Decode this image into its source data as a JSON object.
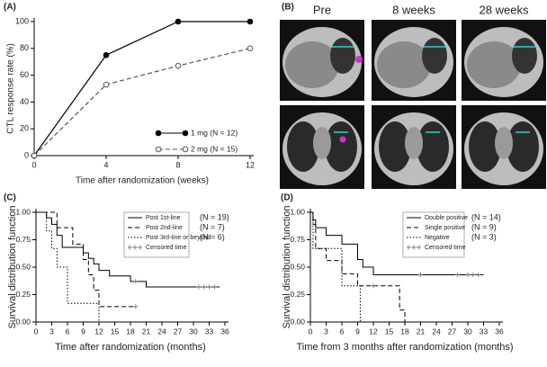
{
  "chart_data": [
    {
      "type": "line",
      "title": "(A)",
      "xlabel": "Time after randomization (weeks)",
      "ylabel": "CTL response rate (%)",
      "x": [
        0,
        4,
        8,
        12
      ],
      "xlim": [
        0,
        12
      ],
      "xticks": [
        0,
        4,
        8,
        12
      ],
      "ylim": [
        0,
        100
      ],
      "yticks": [
        0,
        20,
        40,
        60,
        80,
        100
      ],
      "series": [
        {
          "name": "1 mg (N = 12)",
          "color": "#000000",
          "marker": "filled",
          "dash": "solid",
          "values": [
            0,
            75,
            100,
            100
          ]
        },
        {
          "name": "2 mg (N = 15)",
          "color": "#555555",
          "marker": "open",
          "dash": "dashed",
          "values": [
            0,
            53,
            67,
            80
          ]
        }
      ]
    },
    {
      "type": "image",
      "title": "(B)",
      "columns": [
        "Pre",
        "8 weeks",
        "28 weeks"
      ]
    },
    {
      "type": "step",
      "title": "(C)",
      "xlabel": "Time after randomization (months)",
      "ylabel": "Survival distribution function",
      "xlim": [
        0,
        36
      ],
      "xticks": [
        0,
        3,
        6,
        9,
        12,
        15,
        18,
        21,
        24,
        27,
        30,
        33,
        36
      ],
      "ylim": [
        0,
        1
      ],
      "yticks": [
        {
          "value": 0,
          "label": "0.00"
        },
        {
          "value": 0.25,
          "label": "0.25"
        },
        {
          "value": 0.5,
          "label": "0.50"
        },
        {
          "value": 0.75,
          "label": "0.75"
        },
        {
          "value": 1,
          "label": "1.00"
        }
      ],
      "censor_label": "Censored time",
      "series": [
        {
          "name": "Post 1st-line",
          "n": "(N = 19)",
          "dash": "solid",
          "x": [
            0,
            2,
            3,
            4,
            5,
            9,
            10,
            11,
            12,
            14,
            18,
            21,
            35
          ],
          "values": [
            1,
            0.95,
            0.89,
            0.79,
            0.68,
            0.63,
            0.58,
            0.53,
            0.47,
            0.42,
            0.37,
            0.32,
            0.32
          ],
          "censored": [
            19,
            31,
            32,
            33,
            34
          ]
        },
        {
          "name": "Post 2nd-line",
          "n": "(N = 7)",
          "dash": "dashed",
          "x": [
            0,
            4,
            7,
            9,
            10,
            11,
            12,
            19
          ],
          "values": [
            1,
            0.86,
            0.71,
            0.57,
            0.43,
            0.29,
            0.14,
            0.14
          ],
          "censored": [
            19
          ]
        },
        {
          "name": "Post 3rd-line or beyond",
          "n": "(N = 6)",
          "dash": "dotted",
          "x": [
            0,
            2,
            3,
            4,
            6,
            12
          ],
          "values": [
            1,
            0.83,
            0.67,
            0.5,
            0.17,
            0
          ],
          "censored": []
        }
      ]
    },
    {
      "type": "step",
      "title": "(D)",
      "xlabel": "Time from 3 months after randomization (months)",
      "ylabel": "Survival distribution function",
      "xlim": [
        0,
        36
      ],
      "xticks": [
        0,
        3,
        6,
        9,
        12,
        15,
        18,
        21,
        24,
        27,
        30,
        33,
        36
      ],
      "ylim": [
        0,
        1
      ],
      "yticks": [
        {
          "value": 0,
          "label": "0.00"
        },
        {
          "value": 0.25,
          "label": "0.25"
        },
        {
          "value": 0.5,
          "label": "0.50"
        },
        {
          "value": 0.75,
          "label": "0.75"
        },
        {
          "value": 1,
          "label": "1.00"
        }
      ],
      "censor_label": "Censored time",
      "series": [
        {
          "name": "Double positive",
          "n": "(N = 14)",
          "dash": "solid",
          "x": [
            0,
            0.5,
            1,
            3,
            6,
            9,
            10,
            12,
            33
          ],
          "values": [
            1,
            0.93,
            0.86,
            0.79,
            0.71,
            0.57,
            0.5,
            0.43,
            0.43
          ],
          "censored": [
            21,
            28,
            30,
            31,
            32
          ]
        },
        {
          "name": "Single positive",
          "n": "(N = 9)",
          "dash": "dashed",
          "x": [
            0,
            0.5,
            1,
            3,
            6,
            9,
            17,
            18
          ],
          "values": [
            1,
            0.89,
            0.67,
            0.56,
            0.44,
            0.33,
            0.11,
            0
          ],
          "censored": [
            12
          ]
        },
        {
          "name": "Negative",
          "n": "(N = 3)",
          "dash": "dotted",
          "x": [
            0,
            0.5,
            6,
            9.5
          ],
          "values": [
            1,
            0.67,
            0.33,
            0
          ],
          "censored": []
        }
      ]
    }
  ]
}
